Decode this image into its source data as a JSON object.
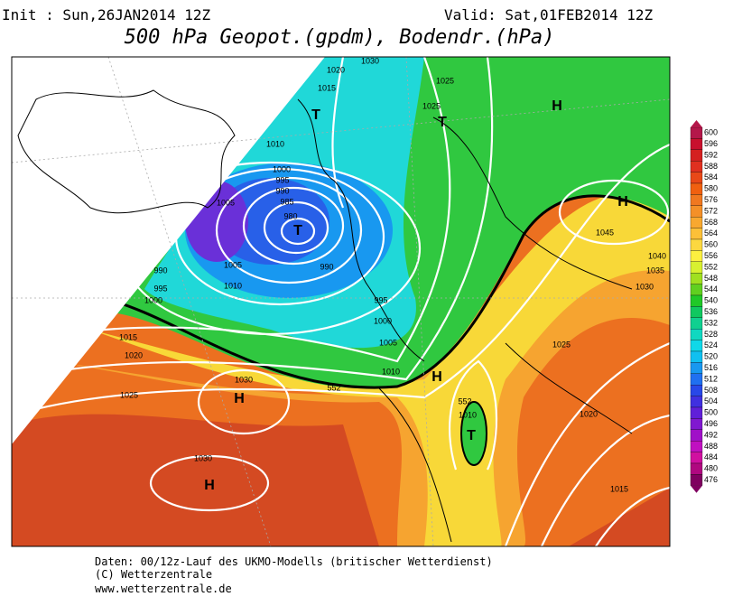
{
  "header": {
    "init": "Init : Sun,26JAN2014 12Z",
    "valid": "Valid: Sat,01FEB2014 12Z",
    "title": "500 hPa Geopot.(gpdm), Bodendr.(hPa)"
  },
  "colorbar": {
    "levels": [
      600,
      596,
      592,
      588,
      584,
      580,
      576,
      572,
      568,
      564,
      560,
      556,
      552,
      548,
      544,
      540,
      536,
      532,
      528,
      524,
      520,
      516,
      512,
      508,
      504,
      500,
      496,
      492,
      488,
      484,
      480,
      476
    ],
    "colors": [
      "#b4174a",
      "#c8102e",
      "#d42020",
      "#e03020",
      "#e84818",
      "#f06010",
      "#f07820",
      "#f49028",
      "#f8a830",
      "#fcc038",
      "#fcd840",
      "#fcf040",
      "#d8f030",
      "#a0e020",
      "#60d020",
      "#20c828",
      "#10c860",
      "#10d090",
      "#10d8c0",
      "#10d8e8",
      "#10c0f0",
      "#1898f0",
      "#2070f0",
      "#2848e8",
      "#4030e0",
      "#6020d8",
      "#8018d0",
      "#a010c8",
      "#c010c0",
      "#d010a0",
      "#b00880",
      "#800060"
    ]
  },
  "map": {
    "isobar_labels": [
      1030,
      1020,
      1015,
      1025,
      1025,
      1010,
      1000,
      995,
      990,
      985,
      980,
      1005,
      990,
      1005,
      1010,
      990,
      995,
      1000,
      995,
      1000,
      1005,
      1010,
      1015,
      1020,
      1030,
      1025,
      1030,
      1045,
      1040,
      1035,
      1030,
      1025,
      1020,
      1015,
      1010,
      552,
      552
    ],
    "system_labels": [
      "T",
      "T",
      "H",
      "T",
      "H",
      "H",
      "H",
      "T",
      "H"
    ]
  },
  "footer": {
    "lines": [
      "Daten: 00/12z-Lauf des UKMO-Modells (britischer Wetterdienst)",
      "(C) Wetterzentrale",
      "www.wetterzentrale.de"
    ]
  }
}
